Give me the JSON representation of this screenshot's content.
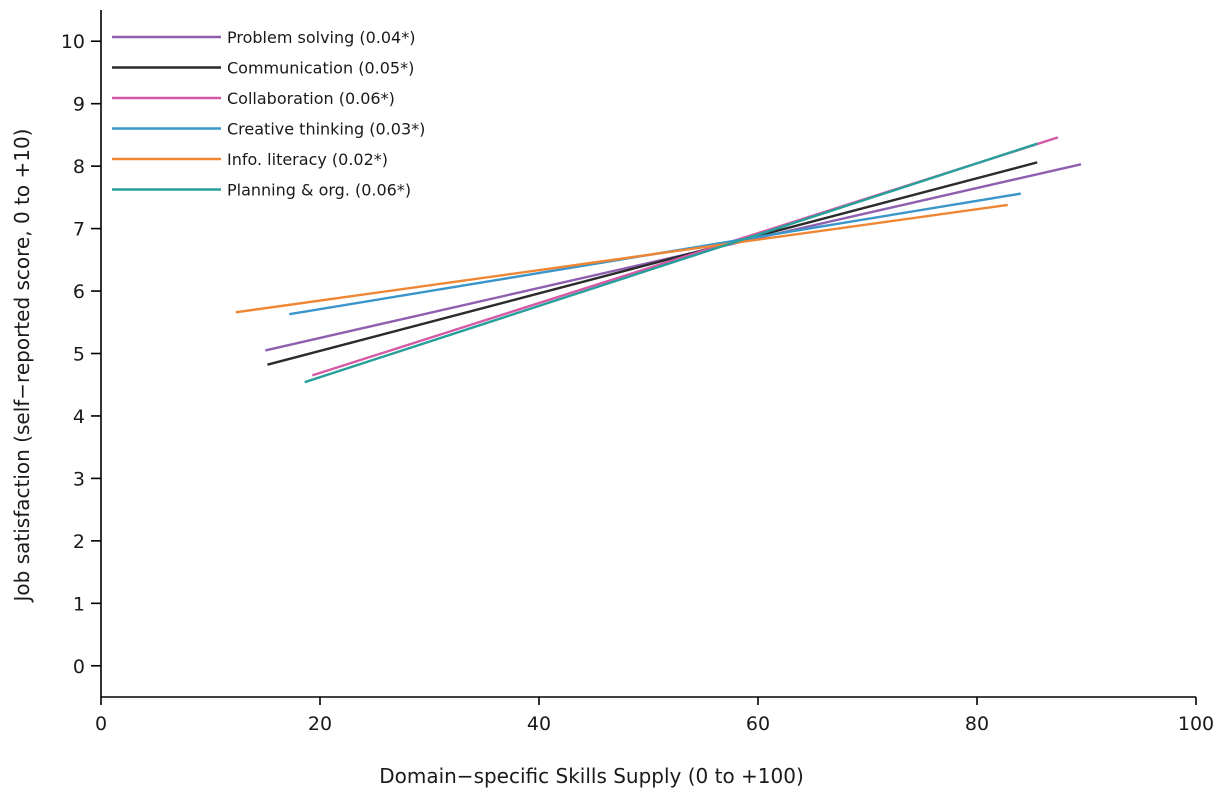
{
  "chart_data": {
    "type": "line",
    "title": "",
    "xlabel": "Domain−specific Skills Supply (0 to +100)",
    "ylabel": "Job satisfaction (self−reported score, 0 to +10)",
    "xlim": [
      0,
      100
    ],
    "ylim": [
      -0.5,
      10.5
    ],
    "x_ticks": [
      0,
      20,
      40,
      60,
      80,
      100
    ],
    "y_ticks": [
      0,
      1,
      2,
      3,
      4,
      5,
      6,
      7,
      8,
      9,
      10
    ],
    "grid": false,
    "legend": "top-left",
    "series": [
      {
        "name": "Problem solving (0.04*)",
        "color": "#8e5fb0",
        "x": [
          15.0,
          89.5
        ],
        "y": [
          5.05,
          8.03
        ]
      },
      {
        "name": "Communication (0.05*)",
        "color": "#2b2b2b",
        "x": [
          15.2,
          85.5
        ],
        "y": [
          4.82,
          8.06
        ]
      },
      {
        "name": "Collaboration (0.06*)",
        "color": "#d45aa6",
        "x": [
          19.3,
          87.4
        ],
        "y": [
          4.65,
          8.46
        ]
      },
      {
        "name": "Creative thinking (0.03*)",
        "color": "#3a95c9",
        "x": [
          17.2,
          84.0
        ],
        "y": [
          5.63,
          7.56
        ]
      },
      {
        "name": "Info. literacy (0.02*)",
        "color": "#ef8634",
        "x": [
          12.3,
          82.8
        ],
        "y": [
          5.66,
          7.38
        ]
      },
      {
        "name": "Planning & org. (0.06*)",
        "color": "#27a09b",
        "x": [
          18.6,
          85.5
        ],
        "y": [
          4.54,
          8.36
        ]
      }
    ]
  }
}
